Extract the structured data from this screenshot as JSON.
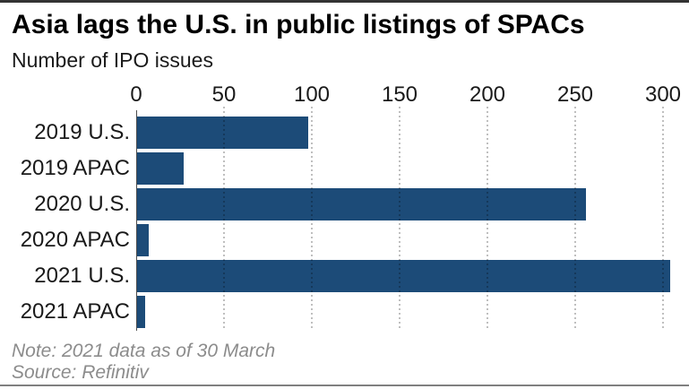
{
  "header": {
    "title": "Asia lags the U.S. in public listings of SPACs",
    "subtitle": "Number of IPO issues"
  },
  "chart_data": {
    "type": "bar",
    "orientation": "horizontal",
    "title": "Asia lags the U.S. in public listings of SPACs",
    "subtitle": "Number of IPO issues",
    "categories": [
      "2019 U.S.",
      "2019 APAC",
      "2020 U.S.",
      "2020 APAC",
      "2021 U.S.",
      "2021 APAC"
    ],
    "values": [
      98,
      27,
      256,
      7,
      304,
      5
    ],
    "x_ticks": [
      0,
      50,
      100,
      150,
      200,
      250,
      300
    ],
    "xlim": [
      0,
      315
    ],
    "xlabel": "",
    "ylabel": "",
    "grid": "vertical-dotted",
    "legend": "none",
    "bar_color": "#1c4b78"
  },
  "footer": {
    "note": "Note: 2021 data as of 30 March",
    "source": "Source: Refinitiv"
  },
  "colors": {
    "bar": "#1c4b78",
    "grid_dot": "rgba(0,0,0,0.25)",
    "axis_line": "#4d4d4d",
    "top_rule": "#333333",
    "bottom_rule": "#808080",
    "text": "#1a1a1a",
    "muted_text": "#8c8c8c"
  }
}
